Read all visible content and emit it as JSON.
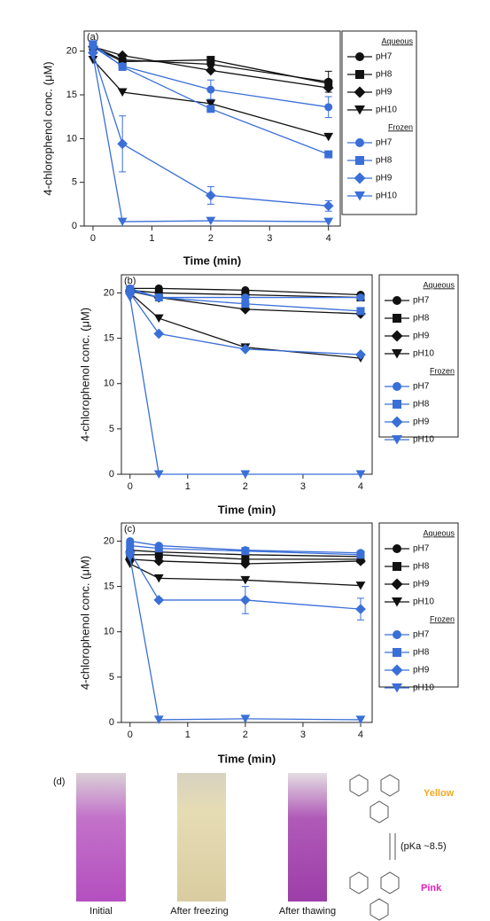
{
  "chart_data": [
    {
      "type": "line",
      "panel_label": "(a)",
      "xlabel": "Time (min)",
      "ylabel": "4-chlorophenol conc. (μM)",
      "x": [
        0,
        0.5,
        2,
        4
      ],
      "xlim": [
        -0.15,
        4.2
      ],
      "ylim": [
        0,
        22.3
      ],
      "xticks": [
        0,
        1,
        2,
        3,
        4
      ],
      "yticks": [
        0,
        5,
        10,
        15,
        20
      ],
      "series": [
        {
          "name": "pH7",
          "group": "Aqueous",
          "color": "#111111",
          "marker": "circle",
          "values": [
            20.5,
            19,
            18.5,
            16.5
          ],
          "errors": [
            null,
            null,
            null,
            1.2
          ]
        },
        {
          "name": "pH8",
          "group": "Aqueous",
          "color": "#111111",
          "marker": "square",
          "values": [
            20.5,
            18.8,
            19,
            16.3
          ]
        },
        {
          "name": "pH9",
          "group": "Aqueous",
          "color": "#111111",
          "marker": "diamond",
          "values": [
            20.5,
            19.5,
            17.8,
            15.8
          ]
        },
        {
          "name": "pH10",
          "group": "Aqueous",
          "color": "#111111",
          "marker": "triangle-down",
          "values": [
            19,
            15.3,
            14,
            10.2
          ]
        },
        {
          "name": "pH7",
          "group": "Frozen",
          "color": "#3a6fd8",
          "marker": "circle",
          "values": [
            20.5,
            18.3,
            15.6,
            13.6
          ],
          "errors": [
            null,
            null,
            1.1,
            1.2
          ]
        },
        {
          "name": "pH8",
          "group": "Frozen",
          "color": "#3a6fd8",
          "marker": "square",
          "values": [
            20.8,
            18.2,
            13.4,
            8.2
          ]
        },
        {
          "name": "pH9",
          "group": "Frozen",
          "color": "#3a6fd8",
          "marker": "diamond",
          "values": [
            19.8,
            9.4,
            3.5,
            2.3
          ],
          "errors": [
            null,
            3.2,
            1.0,
            0.6
          ]
        },
        {
          "name": "pH10",
          "group": "Frozen",
          "color": "#3a6fd8",
          "marker": "triangle-down",
          "values": [
            19.5,
            0.5,
            0.6,
            0.5
          ]
        }
      ]
    },
    {
      "type": "line",
      "panel_label": "(b)",
      "xlabel": "Time (min)",
      "ylabel": "4-chlorophenol conc. (μM)",
      "x": [
        0,
        0.5,
        2,
        4
      ],
      "xlim": [
        -0.15,
        4.2
      ],
      "ylim": [
        0,
        22
      ],
      "xticks": [
        0,
        1,
        2,
        3,
        4
      ],
      "yticks": [
        0,
        5,
        10,
        15,
        20
      ],
      "series": [
        {
          "name": "pH7",
          "group": "Aqueous",
          "color": "#111111",
          "marker": "circle",
          "values": [
            20.5,
            20.5,
            20.3,
            19.8
          ]
        },
        {
          "name": "pH8",
          "group": "Aqueous",
          "color": "#111111",
          "marker": "square",
          "values": [
            20.3,
            20,
            19.8,
            19.5
          ]
        },
        {
          "name": "pH9",
          "group": "Aqueous",
          "color": "#111111",
          "marker": "diamond",
          "values": [
            20.2,
            19.5,
            18.2,
            17.7
          ]
        },
        {
          "name": "pH10",
          "group": "Aqueous",
          "color": "#111111",
          "marker": "triangle-down",
          "values": [
            20,
            17.2,
            14,
            12.8
          ]
        },
        {
          "name": "pH7",
          "group": "Frozen",
          "color": "#3a6fd8",
          "marker": "circle",
          "values": [
            20.5,
            19.5,
            19.5,
            19.5
          ]
        },
        {
          "name": "pH8",
          "group": "Frozen",
          "color": "#3a6fd8",
          "marker": "square",
          "values": [
            20.3,
            19.5,
            18.8,
            18
          ]
        },
        {
          "name": "pH9",
          "group": "Frozen",
          "color": "#3a6fd8",
          "marker": "diamond",
          "values": [
            20,
            15.5,
            13.8,
            13.2
          ]
        },
        {
          "name": "pH10",
          "group": "Frozen",
          "color": "#3a6fd8",
          "marker": "triangle-down",
          "values": [
            19.5,
            0,
            0,
            0
          ]
        }
      ]
    },
    {
      "type": "line",
      "panel_label": "(c)",
      "xlabel": "Time (min)",
      "ylabel": "4-chlorophenol conc. (μM)",
      "x": [
        0,
        0.5,
        2,
        4
      ],
      "xlim": [
        -0.15,
        4.2
      ],
      "ylim": [
        0,
        22
      ],
      "xticks": [
        0,
        1,
        2,
        3,
        4
      ],
      "yticks": [
        0,
        5,
        10,
        15,
        20
      ],
      "series": [
        {
          "name": "pH7",
          "group": "Aqueous",
          "color": "#111111",
          "marker": "circle",
          "values": [
            19,
            18.8,
            18.5,
            18.3
          ]
        },
        {
          "name": "pH8",
          "group": "Aqueous",
          "color": "#111111",
          "marker": "square",
          "values": [
            18.5,
            18.5,
            18,
            18
          ]
        },
        {
          "name": "pH9",
          "group": "Aqueous",
          "color": "#111111",
          "marker": "diamond",
          "values": [
            18,
            17.8,
            17.5,
            17.8
          ]
        },
        {
          "name": "pH10",
          "group": "Aqueous",
          "color": "#111111",
          "marker": "triangle-down",
          "values": [
            17.5,
            15.9,
            15.7,
            15.1
          ]
        },
        {
          "name": "pH7",
          "group": "Frozen",
          "color": "#3a6fd8",
          "marker": "circle",
          "values": [
            20,
            19.5,
            19,
            18.7
          ]
        },
        {
          "name": "pH8",
          "group": "Frozen",
          "color": "#3a6fd8",
          "marker": "square",
          "values": [
            19.5,
            19.2,
            18.9,
            18.5
          ]
        },
        {
          "name": "pH9",
          "group": "Frozen",
          "color": "#3a6fd8",
          "marker": "diamond",
          "values": [
            18.8,
            13.5,
            13.5,
            12.5
          ],
          "errors": [
            null,
            null,
            1.5,
            1.2
          ]
        },
        {
          "name": "pH10",
          "group": "Frozen",
          "color": "#3a6fd8",
          "marker": "triangle-down",
          "values": [
            18.2,
            0.3,
            0.4,
            0.3
          ]
        }
      ]
    }
  ],
  "panel_d": {
    "label": "(d)",
    "photos": [
      "Initial",
      "After freezing",
      "After thawing"
    ],
    "yellow": "Yellow",
    "equilibrium": "(pKa ~8.5)",
    "pink": "Pink"
  }
}
